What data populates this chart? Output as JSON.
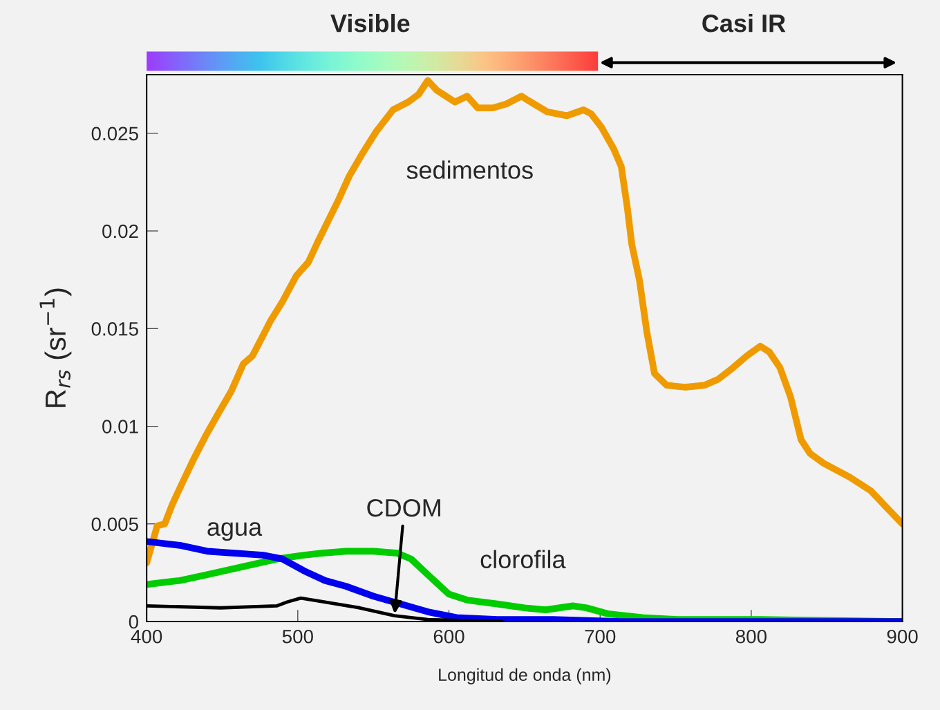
{
  "chart_data": {
    "type": "line",
    "xlabel": "Longitud de onda (nm)",
    "ylabel": "R$_{rs}$ (sr$^{−1}$)",
    "xlim": [
      400,
      900
    ],
    "xticks": [
      400,
      500,
      600,
      700,
      800,
      900
    ],
    "ylim": [
      0,
      0.028
    ],
    "yticks": [
      0,
      0.005,
      0.01,
      0.015,
      0.02,
      0.025
    ],
    "grid": false,
    "marker": "none",
    "line_style": "solid",
    "annotations": [
      "Visible",
      "Casi IR"
    ],
    "series": [
      {
        "name": "sedimentos",
        "color": "#ef9b00",
        "x": [
          400,
          407,
          412,
          417,
          423,
          431,
          439,
          447,
          456,
          464,
          470,
          476,
          482,
          490,
          499,
          507,
          513,
          520,
          527,
          534,
          543,
          552,
          563,
          573,
          580,
          586,
          592,
          604,
          612,
          619,
          629,
          638,
          648,
          652,
          665,
          678,
          689,
          694,
          701,
          709,
          714,
          718,
          721,
          726,
          731,
          736,
          744,
          756,
          769,
          778,
          788,
          797,
          806,
          812,
          819,
          826,
          833,
          839,
          848,
          865,
          879,
          890,
          900
        ],
        "values": [
          0.003,
          0.0049,
          0.005,
          0.006,
          0.007,
          0.0083,
          0.0095,
          0.0106,
          0.0118,
          0.0132,
          0.0136,
          0.0145,
          0.0154,
          0.0164,
          0.0177,
          0.0184,
          0.0194,
          0.0205,
          0.0216,
          0.0228,
          0.024,
          0.0251,
          0.0262,
          0.0266,
          0.027,
          0.0277,
          0.0272,
          0.0266,
          0.0269,
          0.0263,
          0.0263,
          0.0265,
          0.0269,
          0.0267,
          0.0261,
          0.0259,
          0.0262,
          0.026,
          0.0253,
          0.0242,
          0.0233,
          0.0212,
          0.0193,
          0.0175,
          0.0148,
          0.0127,
          0.0121,
          0.012,
          0.0121,
          0.0124,
          0.013,
          0.0136,
          0.0141,
          0.0138,
          0.013,
          0.0115,
          0.0093,
          0.0086,
          0.0081,
          0.0074,
          0.0067,
          0.0058,
          0.005
        ]
      },
      {
        "name": "clorofila",
        "color": "#00cc00",
        "x": [
          400,
          422,
          440,
          463,
          486,
          504,
          516,
          532,
          550,
          566,
          575,
          586,
          600,
          612,
          632,
          650,
          664,
          682,
          691,
          705,
          728,
          751,
          806,
          900
        ],
        "values": [
          0.0019,
          0.0021,
          0.0024,
          0.0028,
          0.0032,
          0.0034,
          0.0035,
          0.0036,
          0.0036,
          0.0035,
          0.0032,
          0.0024,
          0.0014,
          0.0011,
          0.0009,
          0.0007,
          0.0006,
          0.0008,
          0.0007,
          0.0004,
          0.0002,
          0.0001,
          0.0001,
          0
        ]
      },
      {
        "name": "agua",
        "color": "#0000ee",
        "x": [
          400,
          422,
          440,
          458,
          477,
          490,
          504,
          518,
          532,
          550,
          568,
          586,
          605,
          632,
          669,
          714,
          900
        ],
        "values": [
          0.0041,
          0.0039,
          0.0036,
          0.0035,
          0.0034,
          0.0032,
          0.0026,
          0.0021,
          0.0018,
          0.0013,
          0.0009,
          0.0005,
          0.0002,
          0.0001,
          0.0001,
          0,
          0
        ]
      },
      {
        "name": "CDOM",
        "color": "#000000",
        "x": [
          400,
          449,
          486,
          493,
          502,
          518,
          541,
          564,
          586,
          635
        ],
        "values": [
          0.0008,
          0.0007,
          0.0008,
          0.001,
          0.0012,
          0.001,
          0.0007,
          0.0003,
          0.0001,
          0
        ]
      }
    ]
  }
}
